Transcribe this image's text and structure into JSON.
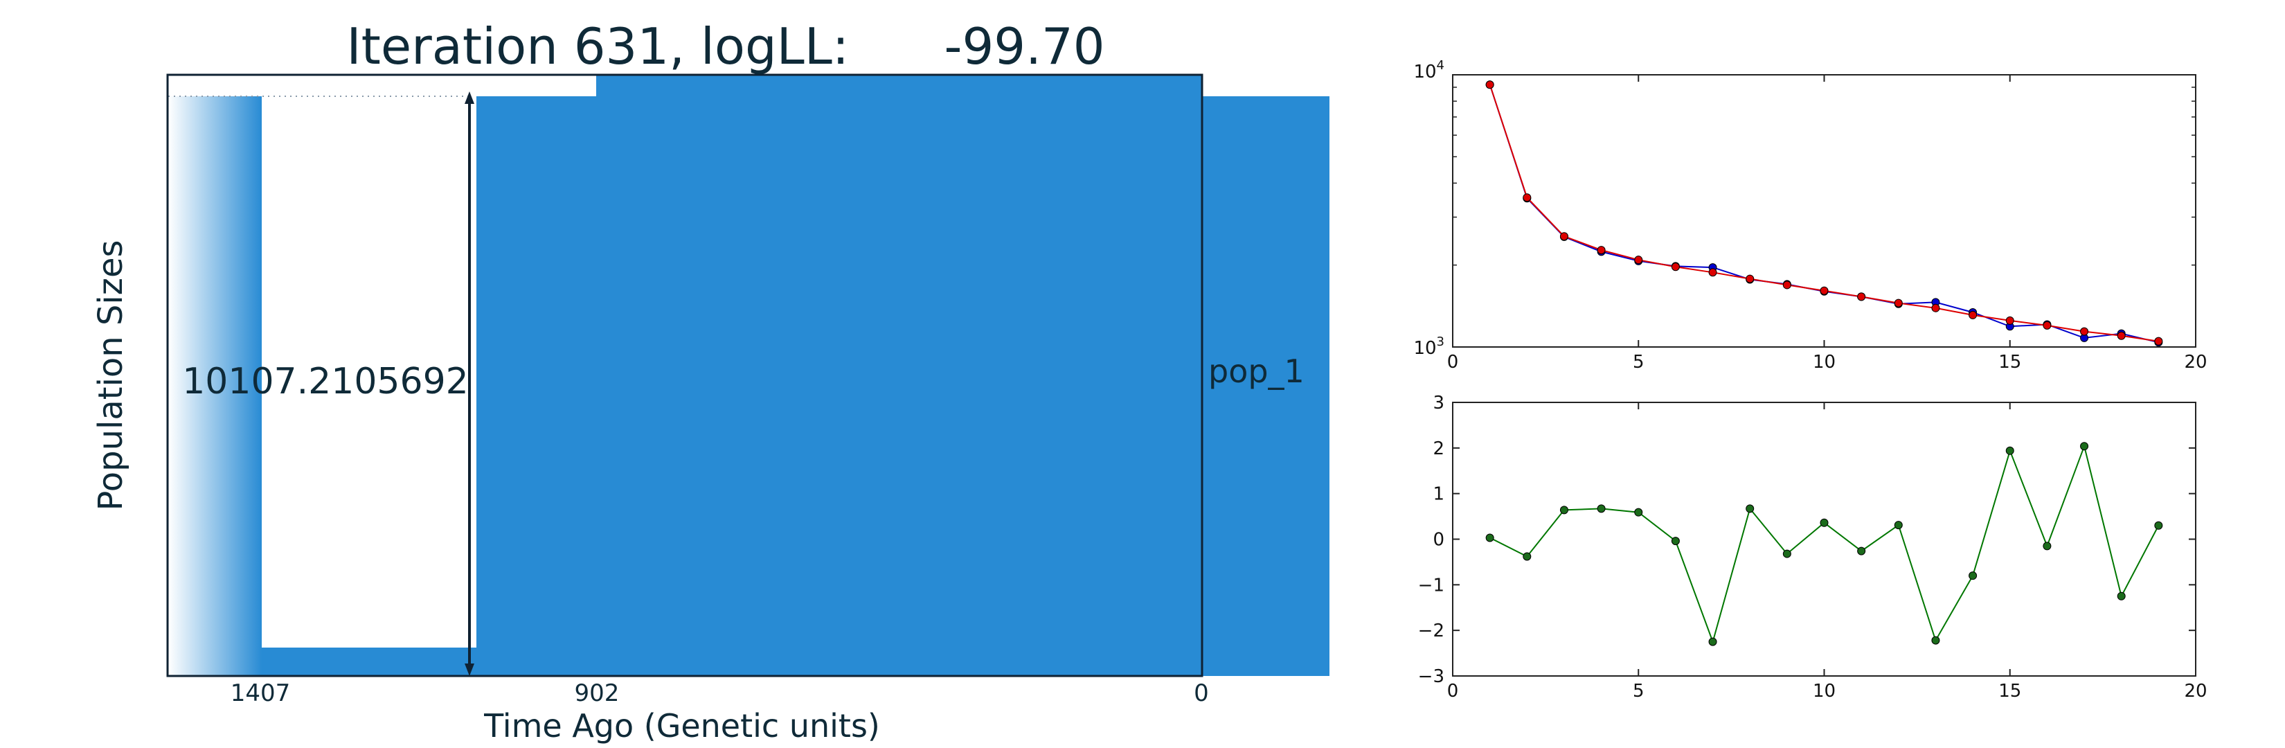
{
  "colors": {
    "pop_fill": "#288bd4",
    "frame": "#0f2233",
    "text": "#1c2f3d",
    "blue_series": "#0000cc",
    "red_series": "#dd0000",
    "green_series": "#007700",
    "green_marker": "#1b6b1b"
  },
  "chart_data": [
    {
      "type": "area",
      "title": "Iteration 631, logLL:      -99.70",
      "xlabel": "Time Ago (Genetic units)",
      "ylabel": "Population Sizes",
      "xticks": [
        "1407",
        "902",
        "0"
      ],
      "xlim": [
        1407,
        0
      ],
      "population": {
        "name": "pop_1",
        "size_history": [
          {
            "from": 0,
            "to": 902,
            "relative_size": 1.0
          },
          {
            "from": 902,
            "to": 1407,
            "relative_size": 0.05
          }
        ]
      },
      "annotation": {
        "label": "10107.2105692",
        "arrow": "double-headed vertical"
      }
    },
    {
      "type": "line",
      "title": "",
      "xlabel": "",
      "ylabel": "",
      "yscale": "log",
      "xlim": [
        0,
        20
      ],
      "ylim": [
        1000,
        10000
      ],
      "xticks": [
        0,
        5,
        10,
        15,
        20
      ],
      "yticks": [
        {
          "value": 1000,
          "base": "10",
          "exp": "3"
        },
        {
          "value": 10000,
          "base": "10",
          "exp": "4"
        }
      ],
      "x": [
        1,
        2,
        3,
        4,
        5,
        6,
        7,
        8,
        9,
        10,
        11,
        12,
        13,
        14,
        15,
        16,
        17,
        18,
        19
      ],
      "series": [
        {
          "color": "blue",
          "values": [
            9200,
            3520,
            2540,
            2240,
            2070,
            1980,
            1960,
            1770,
            1700,
            1600,
            1530,
            1440,
            1460,
            1340,
            1190,
            1210,
            1080,
            1120,
            1040
          ]
        },
        {
          "color": "red",
          "values": [
            9200,
            3540,
            2550,
            2270,
            2090,
            1970,
            1880,
            1780,
            1690,
            1610,
            1530,
            1450,
            1390,
            1310,
            1250,
            1200,
            1140,
            1100,
            1050
          ]
        }
      ]
    },
    {
      "type": "line",
      "title": "",
      "xlabel": "",
      "ylabel": "",
      "xlim": [
        0,
        20
      ],
      "ylim": [
        -3,
        3
      ],
      "xticks": [
        0,
        5,
        10,
        15,
        20
      ],
      "yticks": [
        3,
        2,
        1,
        0,
        -1,
        -2,
        -3
      ],
      "ytick_labels": [
        "3",
        "2",
        "1",
        "0",
        "−1",
        "−2",
        "−3"
      ],
      "x": [
        1,
        2,
        3,
        4,
        5,
        6,
        7,
        8,
        9,
        10,
        11,
        12,
        13,
        14,
        15,
        16,
        17,
        18,
        19
      ],
      "series": [
        {
          "color": "green",
          "values": [
            0.03,
            -0.38,
            0.64,
            0.67,
            0.59,
            -0.04,
            -2.25,
            0.67,
            -0.32,
            0.36,
            -0.26,
            0.31,
            -2.22,
            -0.8,
            1.94,
            -0.15,
            2.04,
            -1.25,
            0.3
          ]
        }
      ]
    }
  ]
}
